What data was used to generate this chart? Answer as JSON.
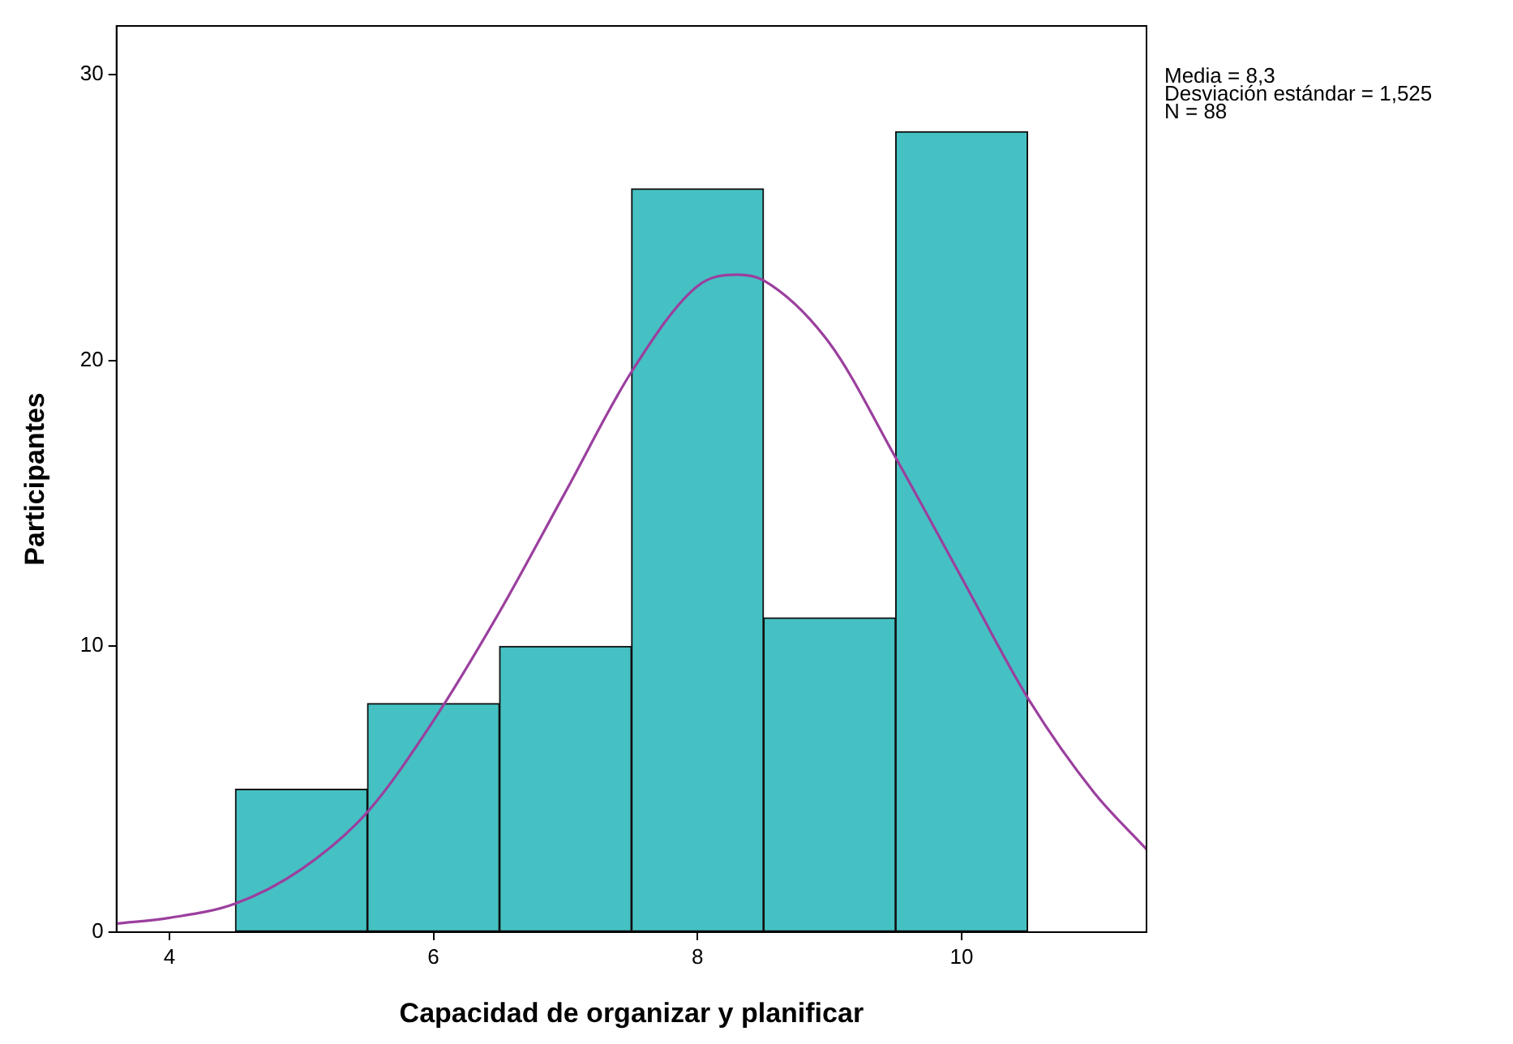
{
  "chart_data": {
    "type": "histogram",
    "xlabel": "Capacidad de organizar y planificar",
    "ylabel": "Participantes",
    "bins": [
      4.5,
      5.5,
      6.5,
      7.5,
      8.5,
      9.5,
      10.5
    ],
    "values": [
      5,
      8,
      10,
      26,
      11,
      28
    ],
    "color": "#45c1c3",
    "series": [
      {
        "type": "line",
        "color": "#9b3f9e",
        "x": [
          3.6,
          4,
          4.5,
          5,
          5.5,
          6,
          6.5,
          7,
          7.5,
          8,
          8.3,
          8.5,
          9,
          9.5,
          10,
          10.5,
          11,
          11.4
        ],
        "values": [
          0.3,
          0.5,
          1.0,
          2.2,
          4.2,
          7.4,
          11.2,
          15.4,
          19.6,
          22.6,
          23,
          22.8,
          20.6,
          16.6,
          12.4,
          8.2,
          4.9,
          2.9
        ]
      }
    ],
    "xlim": [
      3.6,
      11.4
    ],
    "ylim": [
      0,
      31.7
    ],
    "xticks": [
      4,
      6,
      8,
      10
    ],
    "yticks": [
      0,
      10,
      20,
      30
    ],
    "grid": false,
    "legend": false,
    "annotations": [
      "Media = 8,3",
      "Desviación estándar = 1,525",
      "N = 88"
    ]
  }
}
